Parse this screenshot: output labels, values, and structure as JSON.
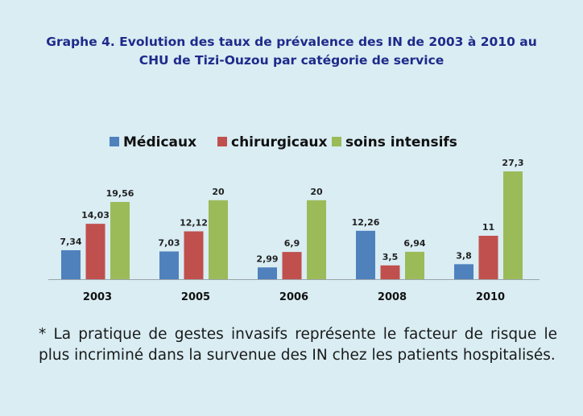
{
  "title": {
    "line1": "Graphe 4. Evolution des taux de prévalence des IN de 2003 à 2010 au",
    "line2": "CHU de Tizi-Ouzou par catégorie de service"
  },
  "footnote": "* La pratique de gestes invasifs représente le facteur de risque le plus incriminé dans la survenue des IN chez les patients hospitalisés.",
  "colors": {
    "background": "#d9edf3",
    "title": "#1f2a8a",
    "series": [
      "#4f81bd",
      "#c0504d",
      "#9bbb59"
    ]
  },
  "chart_data": {
    "type": "bar",
    "categories": [
      "2003",
      "2005",
      "2006",
      "2008",
      "2010"
    ],
    "series": [
      {
        "name": "Médicaux",
        "values": [
          7.34,
          7.03,
          2.99,
          12.26,
          3.8
        ],
        "labels": [
          "7,34",
          "7,03",
          "2,99",
          "12,26",
          "3,8"
        ]
      },
      {
        "name": "chirurgicaux",
        "values": [
          14.03,
          12.12,
          6.9,
          3.5,
          11
        ],
        "labels": [
          "14,03",
          "12,12",
          "6,9",
          "3,5",
          "11"
        ]
      },
      {
        "name": "soins intensifs",
        "values": [
          19.56,
          20,
          20,
          6.94,
          27.3
        ],
        "labels": [
          "19,56",
          "20",
          "20",
          "6,94",
          "27,3"
        ]
      }
    ],
    "legend_position": "top",
    "grid": false,
    "ylim": [
      0,
      27.3
    ]
  }
}
